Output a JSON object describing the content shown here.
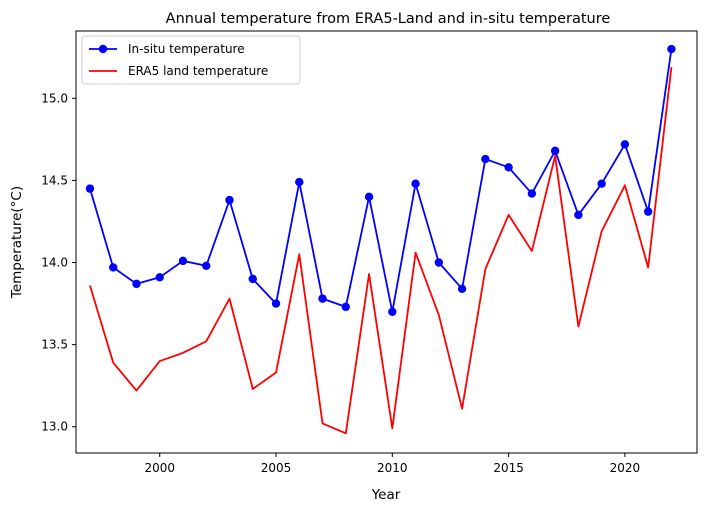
{
  "chart_data": {
    "type": "line",
    "title": "Annual temperature from ERA5-Land and in-situ temperature",
    "xlabel": "Year",
    "ylabel": "Temperature(°C)",
    "xlim": [
      1996.4,
      2023.1
    ],
    "ylim": [
      12.84,
      15.41
    ],
    "xticks": [
      2000,
      2005,
      2010,
      2015,
      2020
    ],
    "yticks": [
      13.0,
      13.5,
      14.0,
      14.5,
      15.0
    ],
    "xtick_labels": [
      "2000",
      "2005",
      "2010",
      "2015",
      "2020"
    ],
    "ytick_labels": [
      "13.0",
      "13.5",
      "14.0",
      "14.5",
      "15.0"
    ],
    "grid": false,
    "legend_position": "top-left",
    "x": [
      1997,
      1998,
      1999,
      2000,
      2001,
      2002,
      2003,
      2004,
      2005,
      2006,
      2007,
      2008,
      2009,
      2010,
      2011,
      2012,
      2013,
      2014,
      2015,
      2016,
      2017,
      2018,
      2019,
      2020,
      2021,
      2022
    ],
    "series": [
      {
        "name": "In-situ temperature",
        "color": "#0000ff",
        "marker": "circle",
        "values": [
          14.45,
          13.97,
          13.87,
          13.91,
          14.01,
          13.98,
          14.38,
          13.9,
          13.75,
          14.49,
          13.78,
          13.73,
          14.4,
          13.7,
          14.48,
          14.0,
          13.84,
          14.63,
          14.58,
          14.42,
          14.68,
          14.29,
          14.48,
          14.72,
          14.31,
          15.3
        ]
      },
      {
        "name": "ERA5 land temperature",
        "color": "#ff0000",
        "marker": "none",
        "values": [
          13.86,
          13.39,
          13.22,
          13.4,
          13.45,
          13.52,
          13.78,
          13.23,
          13.33,
          14.05,
          13.02,
          12.96,
          13.93,
          12.99,
          14.06,
          13.68,
          13.11,
          13.96,
          14.29,
          14.07,
          14.65,
          13.61,
          14.19,
          14.47,
          13.97,
          15.19
        ]
      }
    ]
  }
}
